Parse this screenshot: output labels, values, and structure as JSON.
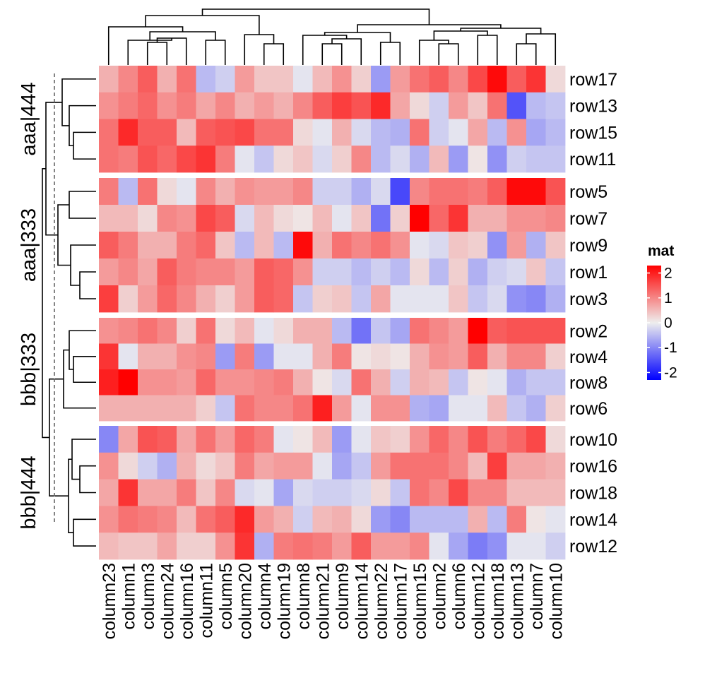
{
  "chart_data": {
    "type": "heatmap",
    "columns": [
      "column23",
      "column1",
      "column3",
      "column24",
      "column16",
      "column11",
      "column5",
      "column20",
      "column4",
      "column19",
      "column8",
      "column21",
      "column9",
      "column14",
      "column22",
      "column17",
      "column15",
      "column2",
      "column6",
      "column12",
      "column18",
      "column13",
      "column7",
      "column10"
    ],
    "row_groups": [
      {
        "label": "aaa|444",
        "rows": [
          "row17",
          "row13",
          "row15",
          "row11"
        ]
      },
      {
        "label": "aaa|333",
        "rows": [
          "row5",
          "row7",
          "row9",
          "row1",
          "row3"
        ]
      },
      {
        "label": "bbb|333",
        "rows": [
          "row2",
          "row4",
          "row8",
          "row6"
        ]
      },
      {
        "label": "bbb|444",
        "rows": [
          "row10",
          "row16",
          "row18",
          "row14",
          "row12"
        ]
      }
    ],
    "values": [
      [
        0.6,
        1.0,
        1.4,
        0.6,
        1.2,
        -0.5,
        -0.3,
        0.8,
        0.4,
        0.4,
        -0.1,
        0.5,
        0.9,
        0.3,
        -0.8,
        0.8,
        1.2,
        1.4,
        1.0,
        1.6,
        2.2,
        1.4,
        1.8,
        0.2
      ],
      [
        0.9,
        1.1,
        1.3,
        0.9,
        1.1,
        0.7,
        1.0,
        0.6,
        0.8,
        0.6,
        1.0,
        1.4,
        1.7,
        1.5,
        1.9,
        0.7,
        0.2,
        -0.3,
        0.8,
        0.4,
        1.2,
        -1.5,
        -0.5,
        -0.4
      ],
      [
        1.2,
        1.9,
        1.4,
        1.4,
        0.5,
        1.4,
        1.5,
        1.6,
        1.2,
        1.2,
        0.2,
        -0.1,
        0.6,
        -0.2,
        -0.5,
        -0.6,
        1.2,
        -0.3,
        -0.1,
        0.7,
        -0.5,
        0.9,
        -0.7,
        -0.5
      ],
      [
        1.2,
        1.1,
        1.5,
        1.3,
        1.6,
        1.8,
        1.1,
        -0.1,
        -0.4,
        0.2,
        0.4,
        -0.2,
        0.3,
        1.0,
        -0.5,
        -0.2,
        -0.6,
        0.5,
        -0.8,
        0.1,
        -0.9,
        -0.3,
        -0.4,
        -0.4
      ],
      [
        1.1,
        -0.5,
        1.2,
        0.2,
        -0.1,
        1.0,
        0.6,
        0.9,
        0.8,
        0.8,
        1.0,
        -0.3,
        -0.3,
        -0.6,
        -0.2,
        -1.6,
        1.0,
        1.2,
        1.2,
        1.1,
        1.4,
        2.2,
        2.2,
        1.5
      ],
      [
        0.5,
        0.5,
        0.2,
        1.0,
        0.9,
        1.6,
        1.4,
        -0.2,
        0.5,
        0.2,
        0.1,
        0.5,
        -0.1,
        0.4,
        -1.2,
        0.3,
        2.3,
        1.3,
        1.8,
        0.6,
        0.6,
        0.9,
        0.9,
        1.0
      ],
      [
        1.4,
        1.1,
        0.6,
        0.6,
        1.1,
        1.3,
        0.4,
        -0.5,
        0.5,
        -0.5,
        2.2,
        0.6,
        1.2,
        1.0,
        1.2,
        0.9,
        -0.1,
        -0.2,
        0.4,
        0.3,
        -0.9,
        0.8,
        -0.6,
        0.4
      ],
      [
        0.8,
        1.0,
        0.7,
        1.4,
        1.1,
        1.0,
        1.0,
        0.8,
        1.4,
        1.3,
        0.9,
        -0.3,
        -0.3,
        -0.5,
        -0.3,
        -0.5,
        0.2,
        -0.5,
        0.3,
        -0.6,
        -0.3,
        -0.2,
        0.4,
        -0.4
      ],
      [
        1.7,
        0.3,
        0.8,
        1.3,
        1.0,
        0.6,
        0.3,
        0.8,
        1.4,
        1.3,
        -0.4,
        0.3,
        0.4,
        -0.4,
        0.7,
        -0.1,
        -0.1,
        -0.1,
        0.4,
        -0.4,
        -0.2,
        -0.9,
        -1.0,
        -0.6
      ],
      [
        0.9,
        1.0,
        1.2,
        1.0,
        0.3,
        1.2,
        0.2,
        0.5,
        -0.1,
        0.2,
        0.6,
        0.6,
        -0.5,
        -1.2,
        -0.4,
        -0.7,
        1.2,
        1.0,
        0.8,
        2.3,
        1.4,
        1.5,
        1.5,
        1.5
      ],
      [
        1.8,
        -0.1,
        0.6,
        0.6,
        0.9,
        1.0,
        -0.8,
        1.1,
        -0.8,
        -0.1,
        -0.1,
        0.6,
        1.1,
        0.1,
        0.2,
        0.1,
        0.6,
        0.9,
        0.8,
        1.4,
        0.6,
        1.0,
        1.0,
        0.3
      ],
      [
        2.0,
        2.3,
        0.9,
        0.9,
        0.8,
        1.3,
        0.9,
        0.9,
        1.0,
        1.1,
        0.6,
        0.1,
        -0.2,
        1.2,
        0.6,
        -0.3,
        0.6,
        0.5,
        -0.4,
        0.1,
        -0.1,
        -0.6,
        -0.4,
        -0.4
      ],
      [
        0.6,
        0.6,
        0.6,
        0.6,
        0.6,
        0.3,
        -0.4,
        1.2,
        1.0,
        1.0,
        1.2,
        2.0,
        0.8,
        -0.1,
        0.9,
        0.9,
        -0.6,
        -0.7,
        -0.1,
        -0.1,
        0.5,
        -0.4,
        -0.6,
        0.3
      ],
      [
        -1.0,
        0.7,
        1.5,
        1.4,
        0.7,
        1.2,
        0.8,
        1.3,
        1.1,
        -0.1,
        0.1,
        0.5,
        -0.8,
        -0.1,
        0.4,
        0.3,
        0.9,
        1.3,
        1.0,
        1.5,
        1.1,
        1.3,
        1.6,
        0.2
      ],
      [
        0.9,
        0.2,
        -0.3,
        -0.6,
        0.6,
        0.2,
        0.4,
        1.1,
        0.7,
        0.8,
        0.8,
        -0.1,
        -0.7,
        -0.4,
        0.8,
        1.2,
        1.2,
        1.2,
        1.0,
        0.5,
        1.7,
        0.7,
        0.7,
        0.6
      ],
      [
        0.7,
        1.8,
        0.7,
        0.7,
        1.1,
        0.4,
        1.0,
        -0.2,
        -0.1,
        -0.7,
        -0.2,
        -0.3,
        -0.3,
        -0.2,
        0.2,
        -0.4,
        1.2,
        1.0,
        1.6,
        1.0,
        1.0,
        0.5,
        0.5,
        0.5
      ],
      [
        0.9,
        1.2,
        1.1,
        1.0,
        0.5,
        1.2,
        1.4,
        1.9,
        0.8,
        0.6,
        -0.3,
        0.5,
        0.6,
        0.2,
        -0.8,
        -1.0,
        -0.5,
        -0.5,
        -0.5,
        0.6,
        -0.5,
        1.1,
        0.1,
        -0.1
      ],
      [
        0.5,
        0.4,
        0.4,
        0.7,
        0.3,
        0.3,
        0.9,
        1.8,
        -0.6,
        1.1,
        1.2,
        1.1,
        0.8,
        1.4,
        0.8,
        0.8,
        1.0,
        -0.1,
        -0.7,
        -1.1,
        -0.9,
        -0.1,
        -0.1,
        -0.3
      ]
    ],
    "legend": {
      "title": "mat",
      "ticks": [
        "2",
        "1",
        "0",
        "-1",
        "-2"
      ],
      "tick_values": [
        2,
        1,
        0,
        -1,
        -2
      ],
      "range": [
        -2.3,
        2.3
      ],
      "colors": {
        "low": "#0000ff",
        "mid": "#eeeeee",
        "high": "#ff0000"
      }
    },
    "legend_placement": "right"
  }
}
